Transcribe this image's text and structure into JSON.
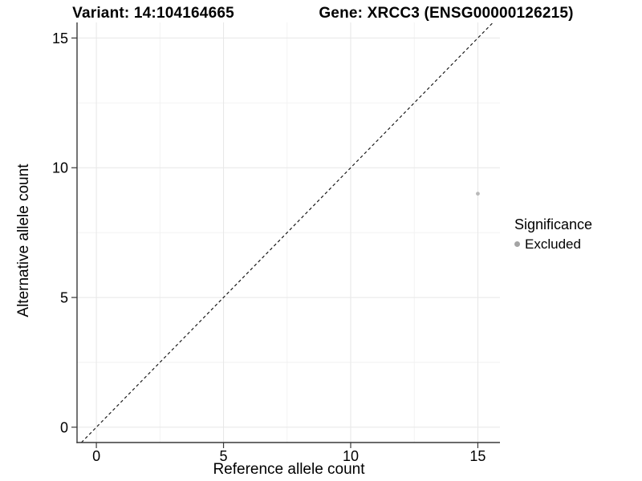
{
  "chart_data": {
    "type": "scatter",
    "title_left": "Variant: 14:104164665",
    "title_right": "Gene: XRCC3 (ENSG00000126215)",
    "xlabel": "Reference allele count",
    "ylabel": "Alternative allele count",
    "xlim": [
      -0.76,
      15.87
    ],
    "ylim": [
      -0.59,
      15.6
    ],
    "xticks": [
      0,
      5,
      10,
      15
    ],
    "yticks": [
      0,
      5,
      10,
      15
    ],
    "xminor": [
      2.5,
      7.5,
      12.5
    ],
    "yminor": [
      2.5,
      7.5,
      12.5
    ],
    "grid": {
      "show": true,
      "major_color": "#e7e7e7",
      "minor_color": "#f1f1f1"
    },
    "axis_color": "#383838",
    "tick_label_color": "#000000",
    "abline": {
      "slope": 1,
      "intercept": 0,
      "style": "dashed",
      "color": "#1a1a1a"
    },
    "series": [
      {
        "name": "Excluded",
        "color": "#b9b9b9",
        "points": [
          {
            "x": 15,
            "y": 9
          }
        ]
      }
    ],
    "legend": {
      "title": "Significance",
      "position": "right",
      "items": [
        {
          "label": "Excluded",
          "color": "#a4a4a4"
        }
      ]
    }
  }
}
